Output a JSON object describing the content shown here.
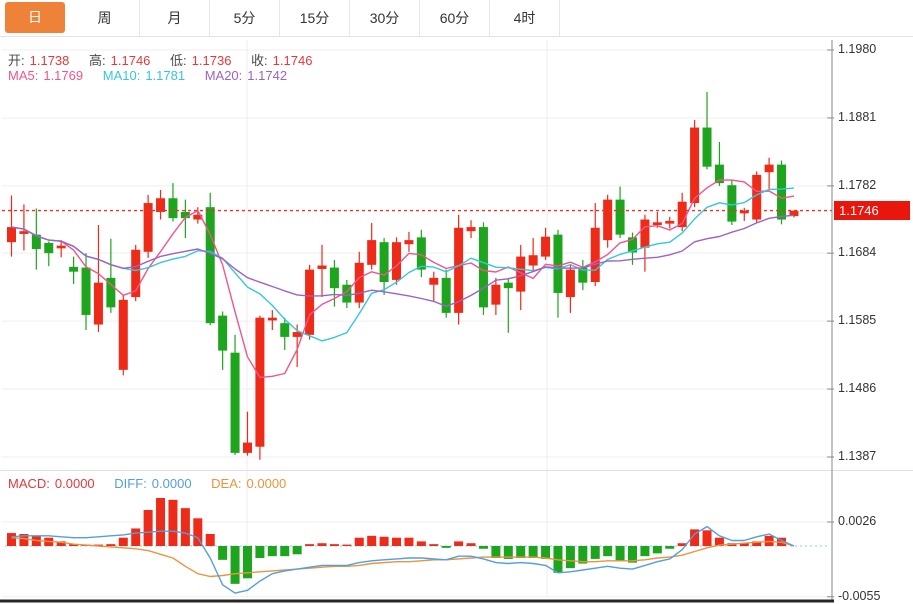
{
  "tabs": {
    "items": [
      {
        "name": "tab-day",
        "label": "日",
        "active": true
      },
      {
        "name": "tab-week",
        "label": "周",
        "active": false
      },
      {
        "name": "tab-month",
        "label": "月",
        "active": false
      },
      {
        "name": "tab-5min",
        "label": "5分",
        "active": false
      },
      {
        "name": "tab-15min",
        "label": "15分",
        "active": false
      },
      {
        "name": "tab-30min",
        "label": "30分",
        "active": false
      },
      {
        "name": "tab-60min",
        "label": "60分",
        "active": false
      },
      {
        "name": "tab-4hour",
        "label": "4时",
        "active": false
      }
    ]
  },
  "main_chart": {
    "ohlc_row": {
      "open_label": "开:",
      "open": "1.1738",
      "high_label": "高:",
      "high": "1.1746",
      "low_label": "低:",
      "low": "1.1736",
      "close_label": "收:",
      "close": "1.1746"
    },
    "ma_row": {
      "ma5_label": "MA5:",
      "ma5": "1.1769",
      "ma10_label": "MA10:",
      "ma10": "1.1781",
      "ma20_label": "MA20:",
      "ma20": "1.1742"
    },
    "last_price_label": "1.1746"
  },
  "macd_panel": {
    "macd_label": "MACD:",
    "macd": "0.0000",
    "diff_label": "DIFF:",
    "diff": "0.0000",
    "dea_label": "DEA:",
    "dea": "0.0000"
  },
  "colors": {
    "active_tab": "#ef8239",
    "up": "#ee2a18",
    "down": "#1ea51e",
    "value_red": "#e4393c",
    "ma5": "#f0558c",
    "ma10": "#36c6dc",
    "ma20": "#9d62c4",
    "diff_line": "#549ee0",
    "dea_line": "#e8953f",
    "last_price_line": "#f03126",
    "badge_bg": "#e8160c",
    "zero_line": "#aad4f0",
    "grid": "#efefef",
    "vgrid": "#ececec",
    "axis": "#8a8a8a",
    "bottom_bar": "#262626"
  },
  "chart_data": [
    {
      "type": "candlestick",
      "title": "日K",
      "ylim": [
        1.1387,
        1.198
      ],
      "yticks": [
        1.198,
        1.1881,
        1.1782,
        1.1684,
        1.1585,
        1.1486,
        1.1387
      ],
      "ytick_labels": [
        "1.1980",
        "1.1881",
        "1.1782",
        "1.1684",
        "1.1585",
        "1.1486",
        "1.1387"
      ],
      "last_price": 1.1746,
      "ma_periods": [
        5,
        10,
        20
      ],
      "legend": [
        "MA5",
        "MA10",
        "MA20"
      ],
      "grid": true,
      "x_gridlines": [
        247,
        547
      ],
      "ohlc": [
        [
          1.17,
          1.1768,
          1.1679,
          1.1722
        ],
        [
          1.1712,
          1.1755,
          1.1688,
          1.1716
        ],
        [
          1.1711,
          1.1749,
          1.166,
          1.169
        ],
        [
          1.1699,
          1.1701,
          1.1665,
          1.1684
        ],
        [
          1.1691,
          1.1703,
          1.1678,
          1.1695
        ],
        [
          1.1664,
          1.1679,
          1.1639,
          1.1657
        ],
        [
          1.1663,
          1.1684,
          1.1572,
          1.1594
        ],
        [
          1.158,
          1.1725,
          1.1569,
          1.1641
        ],
        [
          1.1648,
          1.1705,
          1.1597,
          1.1605
        ],
        [
          1.1514,
          1.1623,
          1.1506,
          1.1616
        ],
        [
          1.162,
          1.1696,
          1.1614,
          1.1689
        ],
        [
          1.1686,
          1.1769,
          1.1677,
          1.1757
        ],
        [
          1.1744,
          1.1776,
          1.1733,
          1.1764
        ],
        [
          1.1764,
          1.1786,
          1.173,
          1.1735
        ],
        [
          1.1744,
          1.1762,
          1.1706,
          1.1735
        ],
        [
          1.1733,
          1.1751,
          1.1727,
          1.174
        ],
        [
          1.1751,
          1.1772,
          1.1579,
          1.1582
        ],
        [
          1.1593,
          1.1599,
          1.1514,
          1.1542
        ],
        [
          1.1539,
          1.1565,
          1.139,
          1.1393
        ],
        [
          1.1393,
          1.1453,
          1.1389,
          1.1408
        ],
        [
          1.1402,
          1.1593,
          1.1383,
          1.159
        ],
        [
          1.1586,
          1.1601,
          1.1572,
          1.159
        ],
        [
          1.1582,
          1.159,
          1.1543,
          1.1562
        ],
        [
          1.1562,
          1.158,
          1.1518,
          1.1569
        ],
        [
          1.1565,
          1.1667,
          1.1558,
          1.166
        ],
        [
          1.1661,
          1.1696,
          1.162,
          1.1666
        ],
        [
          1.1663,
          1.1674,
          1.1606,
          1.1633
        ],
        [
          1.1638,
          1.1645,
          1.1604,
          1.1612
        ],
        [
          1.1612,
          1.1686,
          1.1604,
          1.167
        ],
        [
          1.1667,
          1.1728,
          1.166,
          1.1703
        ],
        [
          1.17,
          1.1706,
          1.1623,
          1.1642
        ],
        [
          1.1645,
          1.1707,
          1.1638,
          1.17
        ],
        [
          1.1697,
          1.1715,
          1.1686,
          1.1703
        ],
        [
          1.1707,
          1.1718,
          1.1649,
          1.166
        ],
        [
          1.1638,
          1.1657,
          1.1613,
          1.1648
        ],
        [
          1.1648,
          1.166,
          1.159,
          1.1597
        ],
        [
          1.1597,
          1.174,
          1.158,
          1.1721
        ],
        [
          1.1716,
          1.1732,
          1.1706,
          1.1722
        ],
        [
          1.1722,
          1.1729,
          1.1594,
          1.1605
        ],
        [
          1.1609,
          1.1648,
          1.1594,
          1.1638
        ],
        [
          1.1641,
          1.1648,
          1.1568,
          1.1633
        ],
        [
          1.1628,
          1.1696,
          1.1601,
          1.1679
        ],
        [
          1.1666,
          1.1706,
          1.1657,
          1.1681
        ],
        [
          1.1679,
          1.1721,
          1.1674,
          1.1708
        ],
        [
          1.1711,
          1.1718,
          1.159,
          1.1626
        ],
        [
          1.162,
          1.1667,
          1.1597,
          1.166
        ],
        [
          1.1663,
          1.1674,
          1.163,
          1.1641
        ],
        [
          1.1642,
          1.1757,
          1.1636,
          1.1721
        ],
        [
          1.1703,
          1.1769,
          1.1692,
          1.1762
        ],
        [
          1.1762,
          1.1781,
          1.1706,
          1.1711
        ],
        [
          1.1707,
          1.1714,
          1.1667,
          1.1685
        ],
        [
          1.1692,
          1.174,
          1.1657,
          1.1733
        ],
        [
          1.1725,
          1.1744,
          1.1721,
          1.1729
        ],
        [
          1.1727,
          1.1737,
          1.172,
          1.1731
        ],
        [
          1.1722,
          1.1772,
          1.1716,
          1.1759
        ],
        [
          1.1757,
          1.1878,
          1.1751,
          1.1867
        ],
        [
          1.1867,
          1.1919,
          1.1806,
          1.181
        ],
        [
          1.1813,
          1.1846,
          1.1782,
          1.1786
        ],
        [
          1.1783,
          1.1791,
          1.1725,
          1.173
        ],
        [
          1.1742,
          1.175,
          1.1731,
          1.1746
        ],
        [
          1.1733,
          1.1803,
          1.1728,
          1.1798
        ],
        [
          1.1802,
          1.1823,
          1.1776,
          1.1813
        ],
        [
          1.1813,
          1.1819,
          1.1726,
          1.1733
        ],
        [
          1.1738,
          1.1746,
          1.1736,
          1.1746
        ]
      ]
    },
    {
      "type": "bar",
      "title": "MACD",
      "yticks": [
        0.0026,
        -0.0055
      ],
      "ytick_labels": [
        "0.0026",
        "-0.0055"
      ],
      "zero": 0,
      "legend": [
        "MACD",
        "DIFF",
        "DEA"
      ],
      "hist": [
        0.0014,
        0.0013,
        0.0011,
        0.0009,
        0.0005,
        0.0002,
        0.0001,
        0.0001,
        0.0002,
        0.0009,
        0.0019,
        0.0039,
        0.0052,
        0.005,
        0.0041,
        0.003,
        0.0013,
        -0.0015,
        -0.0041,
        -0.0035,
        -0.0013,
        -0.0011,
        -0.0011,
        -0.0009,
        0.0002,
        0.0003,
        0.0002,
        0.0001,
        0.0009,
        0.0011,
        0.001,
        0.0009,
        0.0009,
        0.0005,
        0.0002,
        -0.0002,
        0.0005,
        0.0003,
        -0.0003,
        -0.0013,
        -0.0014,
        -0.0013,
        -0.0013,
        -0.0014,
        -0.0029,
        -0.0024,
        -0.0019,
        -0.0014,
        -0.0011,
        -0.0016,
        -0.0018,
        -0.0011,
        -0.0008,
        -0.0003,
        0.0003,
        0.0018,
        0.0017,
        0.0009,
        0.0003,
        0.0003,
        0.0005,
        0.0011,
        0.0009,
        0.0
      ],
      "diff": [
        0.001,
        0.0011,
        0.0011,
        0.0011,
        0.001,
        0.0009,
        0.0009,
        0.001,
        0.0011,
        0.0012,
        0.0014,
        0.0015,
        0.0016,
        0.0016,
        0.0014,
        0.0009,
        -0.0013,
        -0.0042,
        -0.0051,
        -0.0048,
        -0.0038,
        -0.003,
        -0.0027,
        -0.0025,
        -0.0023,
        -0.0021,
        -0.0021,
        -0.0021,
        -0.0018,
        -0.0016,
        -0.0015,
        -0.0014,
        -0.0013,
        -0.0013,
        -0.0014,
        -0.0015,
        -0.0011,
        -0.0011,
        -0.0014,
        -0.0018,
        -0.0019,
        -0.0018,
        -0.0019,
        -0.0021,
        -0.0029,
        -0.0028,
        -0.0026,
        -0.0024,
        -0.0022,
        -0.0024,
        -0.0025,
        -0.0021,
        -0.0017,
        -0.0014,
        -0.0004,
        0.0013,
        0.0021,
        0.0011,
        0.0006,
        0.0006,
        0.001,
        0.0013,
        0.0006,
        0.0
      ],
      "dea": [
        0.0009,
        0.0008,
        0.0006,
        0.0005,
        0.0004,
        0.0002,
        0.0001,
        0.0,
        -0.0001,
        -0.0002,
        -0.0003,
        -0.0005,
        -0.0009,
        -0.0013,
        -0.0022,
        -0.003,
        -0.0033,
        -0.0032,
        -0.003,
        -0.0029,
        -0.0028,
        -0.0027,
        -0.0026,
        -0.0025,
        -0.0024,
        -0.0023,
        -0.0022,
        -0.0022,
        -0.0021,
        -0.0019,
        -0.0018,
        -0.0017,
        -0.0017,
        -0.0016,
        -0.0015,
        -0.0015,
        -0.0014,
        -0.0013,
        -0.0012,
        -0.0012,
        -0.0012,
        -0.0012,
        -0.0012,
        -0.0013,
        -0.0015,
        -0.0016,
        -0.0017,
        -0.0017,
        -0.0016,
        -0.0016,
        -0.0016,
        -0.0015,
        -0.0013,
        -0.0012,
        -0.001,
        -0.0006,
        -0.0002,
        0.0001,
        0.0002,
        0.0003,
        0.0004,
        0.0005,
        0.0004,
        0.0
      ]
    }
  ]
}
